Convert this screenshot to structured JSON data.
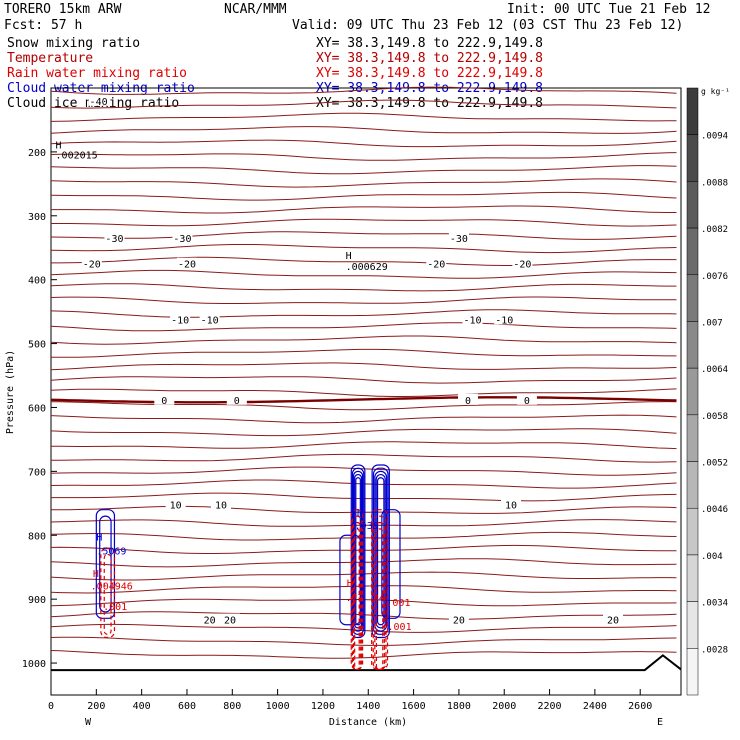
{
  "header": {
    "model": "TORERO  15km ARW",
    "center": "NCAR/MMM",
    "init": "Init: 00 UTC Tue 21 Feb 12",
    "fcst": "Fcst:   57 h",
    "valid": "Valid: 09 UTC Thu 23 Feb 12 (03 CST Thu 23 Feb 12)",
    "fields": [
      {
        "name": "Snow mixing ratio",
        "xy": "XY=  38.3,149.8 to 222.9,149.8",
        "color": "#000000"
      },
      {
        "name": "Temperature",
        "xy": "XY=  38.3,149.8 to 222.9,149.8",
        "color": "#b30000"
      },
      {
        "name": "Rain water mixing ratio",
        "xy": "XY=  38.3,149.8 to 222.9,149.8",
        "color": "#e00000"
      },
      {
        "name": "Cloud water mixing ratio",
        "xy": "XY=  38.3,149.8 to 222.9,149.8",
        "color": "#0000cc"
      },
      {
        "name": "Cloud ice mixing ratio",
        "xy": "XY=  38.3,149.8 to 222.9,149.8",
        "color": "#000000"
      }
    ]
  },
  "chart_data": {
    "type": "cross-section contour",
    "xlabel": "Distance (km)",
    "ylabel": "Pressure (hPa)",
    "x_ticks": [
      0,
      200,
      400,
      600,
      800,
      1000,
      1200,
      1400,
      1600,
      1800,
      2000,
      2200,
      2400,
      2600
    ],
    "xlim": [
      0,
      2780
    ],
    "y_ticks": [
      200,
      300,
      400,
      500,
      600,
      700,
      800,
      900,
      1000
    ],
    "ylim": [
      100,
      1050
    ],
    "x_end_labels": {
      "left": "W",
      "right": "E"
    },
    "colorbar": {
      "unit": "g kg⁻¹",
      "ticks": [
        ".0094",
        ".0088",
        ".0082",
        ".0076",
        ".007",
        ".0064",
        ".0058",
        ".0052",
        ".0046",
        ".004",
        ".0034",
        ".0028"
      ]
    },
    "temperature_contours": [
      {
        "value": -30,
        "pressure": 335,
        "labels": [
          {
            "x": 280,
            "text": "-30"
          },
          {
            "x": 580,
            "text": "-30"
          },
          {
            "x": 1800,
            "text": "-30"
          }
        ]
      },
      {
        "value": -20,
        "pressure": 375,
        "labels": [
          {
            "x": 180,
            "text": "-20"
          },
          {
            "x": 600,
            "text": "-20"
          },
          {
            "x": 1700,
            "text": "-20"
          },
          {
            "x": 2080,
            "text": "-20"
          }
        ]
      },
      {
        "value": -10,
        "pressure": 462,
        "labels": [
          {
            "x": 570,
            "text": "-10"
          },
          {
            "x": 700,
            "text": "-10"
          },
          {
            "x": 1860,
            "text": "-10"
          },
          {
            "x": 2000,
            "text": "-10"
          }
        ]
      },
      {
        "value": 0,
        "pressure": 588,
        "labels": [
          {
            "x": 500,
            "text": "0"
          },
          {
            "x": 820,
            "text": "0"
          },
          {
            "x": 1840,
            "text": "0"
          },
          {
            "x": 2100,
            "text": "0"
          }
        ]
      },
      {
        "value": 10,
        "pressure": 752,
        "labels": [
          {
            "x": 550,
            "text": "10"
          },
          {
            "x": 750,
            "text": "10"
          },
          {
            "x": 2030,
            "text": "10"
          }
        ]
      },
      {
        "value": 20,
        "pressure": 932,
        "labels": [
          {
            "x": 700,
            "text": "20"
          },
          {
            "x": 790,
            "text": "20"
          },
          {
            "x": 1800,
            "text": "20"
          },
          {
            "x": 2480,
            "text": "20"
          }
        ]
      },
      {
        "value": -40,
        "pressure": 120,
        "labels": [
          {
            "x": 210,
            "text": "-40"
          }
        ]
      }
    ],
    "annotations": [
      {
        "x": 20,
        "p": 195,
        "text": "H",
        "color": "#000000"
      },
      {
        "x": 20,
        "p": 210,
        "text": ".002015",
        "color": "#000000"
      },
      {
        "x": 1300,
        "p": 368,
        "text": "H",
        "color": "#000000"
      },
      {
        "x": 1300,
        "p": 385,
        "text": ".000629",
        "color": "#000000"
      },
      {
        "x": 200,
        "p": 808,
        "text": "H",
        "color": "#0000cc"
      },
      {
        "x": 200,
        "p": 830,
        "text": ".5069",
        "color": "#0000cc"
      },
      {
        "x": 185,
        "p": 865,
        "text": "H",
        "color": "#e00000"
      },
      {
        "x": 175,
        "p": 885,
        "text": ".004946",
        "color": "#e00000"
      },
      {
        "x": 230,
        "p": 917,
        "text": ".001",
        "color": "#e00000"
      },
      {
        "x": 1350,
        "p": 770,
        "text": "H",
        "color": "#0000cc"
      },
      {
        "x": 1340,
        "p": 790,
        "text": ".939",
        "color": "#0000cc"
      },
      {
        "x": 1305,
        "p": 880,
        "text": "H",
        "color": "#e00000"
      },
      {
        "x": 1300,
        "p": 903,
        "text": ".27",
        "color": "#e00000"
      },
      {
        "x": 1420,
        "p": 903,
        "text": "34",
        "color": "#e00000"
      },
      {
        "x": 1480,
        "p": 911,
        "text": ".001",
        "color": "#e00000"
      },
      {
        "x": 1485,
        "p": 948,
        "text": ".001",
        "color": "#e00000"
      }
    ]
  }
}
